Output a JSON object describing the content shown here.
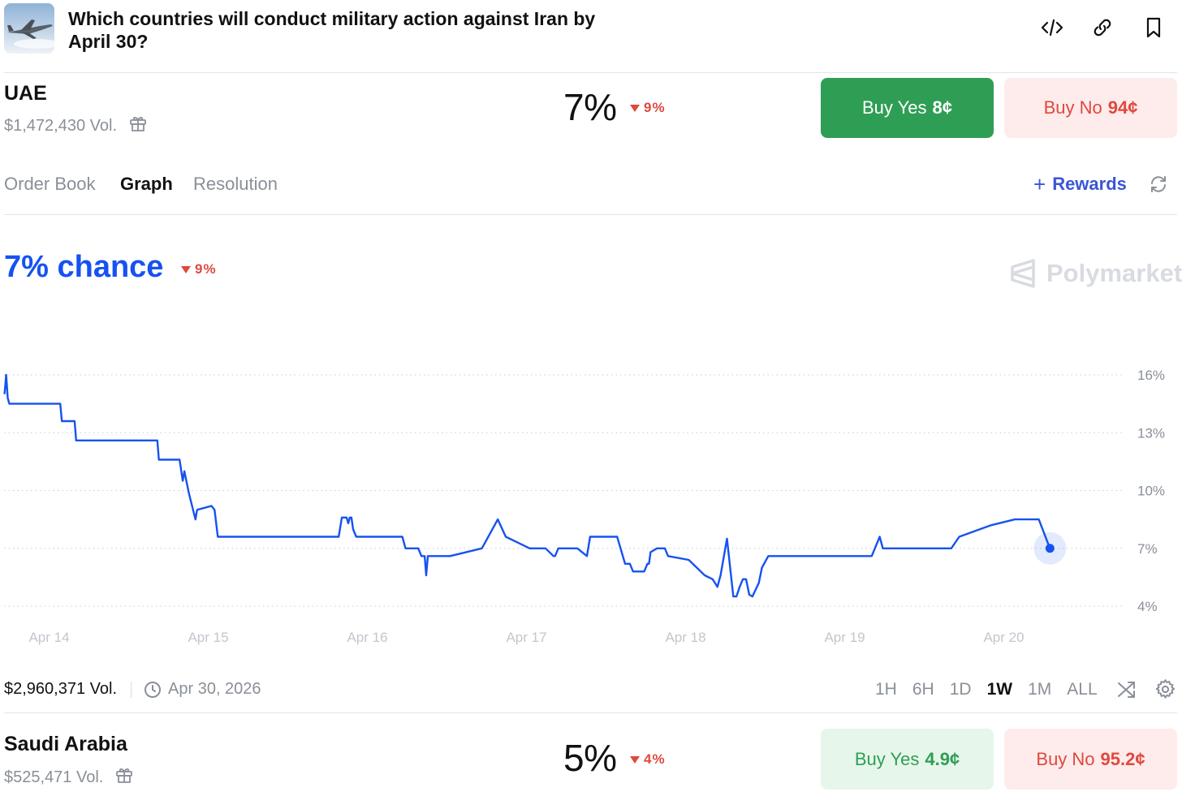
{
  "header": {
    "title": "Which countries will conduct military action against Iran by April 30?",
    "icons": [
      "embed-icon",
      "link-icon",
      "bookmark-icon"
    ]
  },
  "market_uae": {
    "name": "UAE",
    "volume": "$1,472,430 Vol.",
    "percent": "7%",
    "change": "9%",
    "buy_yes_label": "Buy Yes",
    "buy_yes_price": "8¢",
    "buy_no_label": "Buy No",
    "buy_no_price": "94¢"
  },
  "tabs": [
    "Order Book",
    "Graph",
    "Resolution"
  ],
  "active_tab": "Graph",
  "rewards_label": "Rewards",
  "chart_header": {
    "chance": "7% chance",
    "change": "9%",
    "brand": "Polymarket"
  },
  "chart_data": {
    "type": "line",
    "x_ticks": [
      "Apr 14",
      "Apr 15",
      "Apr 16",
      "Apr 17",
      "Apr 18",
      "Apr 19",
      "Apr 20"
    ],
    "y_ticks": [
      "16%",
      "13%",
      "10%",
      "7%",
      "4%"
    ],
    "y_tick_values": [
      16,
      13,
      10,
      7,
      4
    ],
    "ylim": [
      4,
      16
    ],
    "grid": true,
    "color": "#1652f0",
    "series": [
      {
        "x": [
          0.0,
          0.01,
          0.02,
          0.03,
          0.35,
          0.36,
          0.44,
          0.45,
          0.96,
          0.97,
          1.1,
          1.12,
          1.13,
          1.15,
          1.16,
          1.2,
          1.21,
          1.3,
          1.32,
          1.34,
          2.1,
          2.12,
          2.15,
          2.16,
          2.17,
          2.18,
          2.19,
          2.21,
          2.23,
          2.3,
          2.5,
          2.52,
          2.6,
          2.62,
          2.64,
          2.65,
          2.66,
          2.8,
          3.0,
          3.1,
          3.15,
          3.3,
          3.4,
          3.45,
          3.46,
          3.48,
          3.5,
          3.6,
          3.66,
          3.68,
          3.7,
          3.85,
          3.9,
          3.93,
          3.95,
          4.02,
          4.04,
          4.05,
          4.06,
          4.1,
          4.15,
          4.17,
          4.3,
          4.4,
          4.45,
          4.48,
          4.5,
          4.54,
          4.56,
          4.58,
          4.6,
          4.62,
          4.64,
          4.66,
          4.68,
          4.7,
          4.74,
          4.76,
          4.8,
          4.9,
          5.1,
          5.3,
          5.45,
          5.5,
          5.52,
          5.55,
          5.9,
          5.95,
          6.0,
          6.2,
          6.35,
          6.5,
          6.57
        ],
        "y": [
          15.0,
          16.0,
          14.8,
          14.5,
          14.5,
          13.6,
          13.6,
          12.6,
          12.6,
          11.6,
          11.6,
          10.5,
          11.0,
          10.2,
          9.8,
          8.5,
          9.0,
          9.2,
          9.0,
          7.6,
          7.6,
          8.6,
          8.6,
          8.3,
          8.6,
          8.6,
          8.0,
          7.6,
          7.6,
          7.6,
          7.6,
          7.0,
          7.0,
          6.6,
          6.6,
          5.6,
          6.6,
          6.6,
          7.0,
          8.5,
          7.6,
          7.0,
          7.0,
          6.6,
          6.6,
          7.0,
          7.0,
          7.0,
          6.6,
          7.6,
          7.6,
          7.6,
          6.2,
          6.2,
          5.8,
          5.8,
          6.2,
          6.2,
          6.8,
          7.0,
          7.0,
          6.6,
          6.4,
          5.6,
          5.4,
          5.0,
          5.6,
          7.5,
          6.0,
          4.5,
          4.5,
          5.0,
          5.4,
          5.4,
          4.6,
          4.5,
          5.2,
          6.0,
          6.6,
          6.6,
          6.6,
          6.6,
          6.6,
          7.6,
          7.0,
          7.0,
          7.0,
          7.0,
          7.6,
          8.2,
          8.5,
          8.5,
          7.0
        ]
      }
    ]
  },
  "footer": {
    "volume": "$2,960,371 Vol.",
    "date": "Apr 30, 2026",
    "ranges": [
      "1H",
      "6H",
      "1D",
      "1W",
      "1M",
      "ALL"
    ],
    "active_range": "1W"
  },
  "market_saudi": {
    "name": "Saudi Arabia",
    "volume": "$525,471 Vol.",
    "percent": "5%",
    "change": "4%",
    "buy_yes_label": "Buy Yes",
    "buy_yes_price": "4.9¢",
    "buy_no_label": "Buy No",
    "buy_no_price": "95.2¢"
  }
}
